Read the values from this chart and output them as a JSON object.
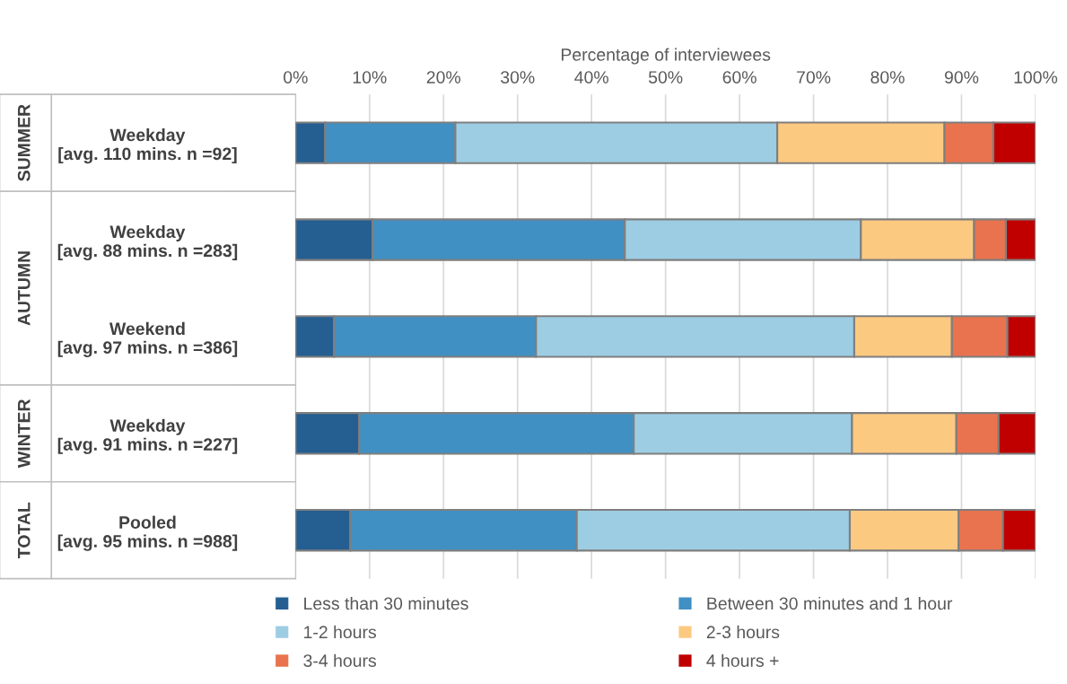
{
  "chart_data": {
    "type": "bar",
    "orientation": "horizontal",
    "stacked": true,
    "xlabel": "Percentage of interviewees",
    "categories": [
      "Weekday\n[avg. 110 mins. n =92]",
      "Weekday\n[avg. 88 mins. n =283]",
      "Weekend\n[avg. 97 mins. n =386]",
      "Weekday\n[avg. 91 mins. n =227]",
      "Pooled\n[avg. 95 mins. n =988]"
    ],
    "series": [
      {
        "name": "Less than 30 minutes",
        "color": "#255e91",
        "values": [
          4.0,
          10.4,
          5.2,
          8.6,
          7.4
        ]
      },
      {
        "name": "Between 30 minutes and 1 hour",
        "color": "#4190c3",
        "values": [
          17.6,
          34.1,
          27.3,
          37.1,
          30.6
        ]
      },
      {
        "name": "1-2 hours",
        "color": "#9dcde3",
        "values": [
          43.5,
          31.9,
          43.0,
          29.5,
          36.9
        ]
      },
      {
        "name": "2-3 hours",
        "color": "#fcc981",
        "values": [
          22.6,
          15.3,
          13.2,
          14.1,
          14.7
        ]
      },
      {
        "name": "3-4 hours",
        "color": "#e9734f",
        "values": [
          6.6,
          4.3,
          7.5,
          5.7,
          6.0
        ]
      },
      {
        "name": "4 hours +",
        "color": "#c00000",
        "values": [
          5.7,
          4.0,
          3.8,
          5.0,
          4.4
        ]
      }
    ],
    "xlim": [
      0,
      100
    ],
    "xticks": [
      {
        "value": 0,
        "label": "0%"
      },
      {
        "value": 10,
        "label": "10%"
      },
      {
        "value": 20,
        "label": "20%"
      },
      {
        "value": 30,
        "label": "30%"
      },
      {
        "value": 40,
        "label": "40%"
      },
      {
        "value": 50,
        "label": "50%"
      },
      {
        "value": 60,
        "label": "60%"
      },
      {
        "value": 70,
        "label": "70%"
      },
      {
        "value": 80,
        "label": "80%"
      },
      {
        "value": 90,
        "label": "90%"
      },
      {
        "value": 100,
        "label": "100%"
      }
    ],
    "annotations": [
      "SUMMER",
      "AUTUMN",
      "WINTER",
      "TOTAL"
    ],
    "grid": "x",
    "legend": "bottom"
  }
}
